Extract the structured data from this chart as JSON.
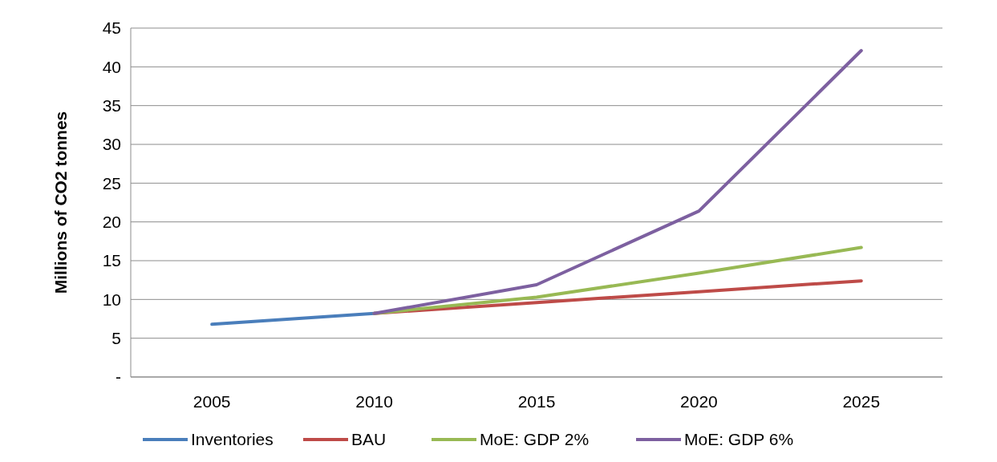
{
  "chart_data": {
    "type": "line",
    "ylabel": "Millions of CO2 tonnes",
    "categories": [
      "2005",
      "2010",
      "2015",
      "2020",
      "2025"
    ],
    "ylim": [
      0,
      45
    ],
    "yticks": [
      {
        "value": 0,
        "label": "-"
      },
      5,
      10,
      15,
      20,
      25,
      30,
      35,
      40,
      45
    ],
    "grid": "y",
    "legend": "bottom",
    "marker": "none",
    "line_style": "solid",
    "series": [
      {
        "name": "Inventories",
        "color": "#4a7ebb",
        "values": [
          6.8,
          8.2,
          null,
          null,
          null
        ]
      },
      {
        "name": "BAU",
        "color": "#be4b48",
        "values": [
          null,
          8.2,
          9.6,
          11.0,
          12.4
        ]
      },
      {
        "name": "MoE: GDP 2%",
        "color": "#98b954",
        "values": [
          null,
          8.2,
          10.3,
          13.4,
          16.7
        ]
      },
      {
        "name": "MoE: GDP 6%",
        "color": "#7d60a0",
        "values": [
          null,
          8.2,
          11.9,
          21.4,
          42.1
        ]
      }
    ]
  }
}
